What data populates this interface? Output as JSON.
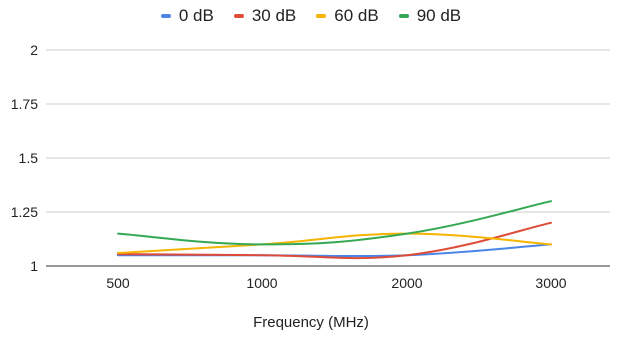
{
  "chart_data": {
    "type": "line",
    "title": "",
    "xlabel": "Frequency (MHz)",
    "ylabel": "",
    "categories": [
      "500",
      "1000",
      "2000",
      "3000"
    ],
    "x": [
      500,
      1000,
      2000,
      3000
    ],
    "ylim": [
      1,
      2
    ],
    "yticks": [
      "1",
      "1.25",
      "1.5",
      "1.75",
      "2"
    ],
    "ytick_values": [
      1,
      1.25,
      1.5,
      1.75,
      2
    ],
    "grid": "horizontal",
    "legend_position": "top",
    "smooth": true,
    "series": [
      {
        "name": "0 dB",
        "color": "#4a86e8",
        "values": [
          1.05,
          1.05,
          1.05,
          1.1
        ]
      },
      {
        "name": "30 dB",
        "color": "#dd4b39",
        "values": [
          1.055,
          1.05,
          1.05,
          1.2
        ]
      },
      {
        "name": "60 dB",
        "color": "#f4b400",
        "values": [
          1.06,
          1.1,
          1.15,
          1.1
        ]
      },
      {
        "name": "90 dB",
        "color": "#34a853",
        "values": [
          1.15,
          1.1,
          1.15,
          1.3
        ]
      }
    ]
  }
}
